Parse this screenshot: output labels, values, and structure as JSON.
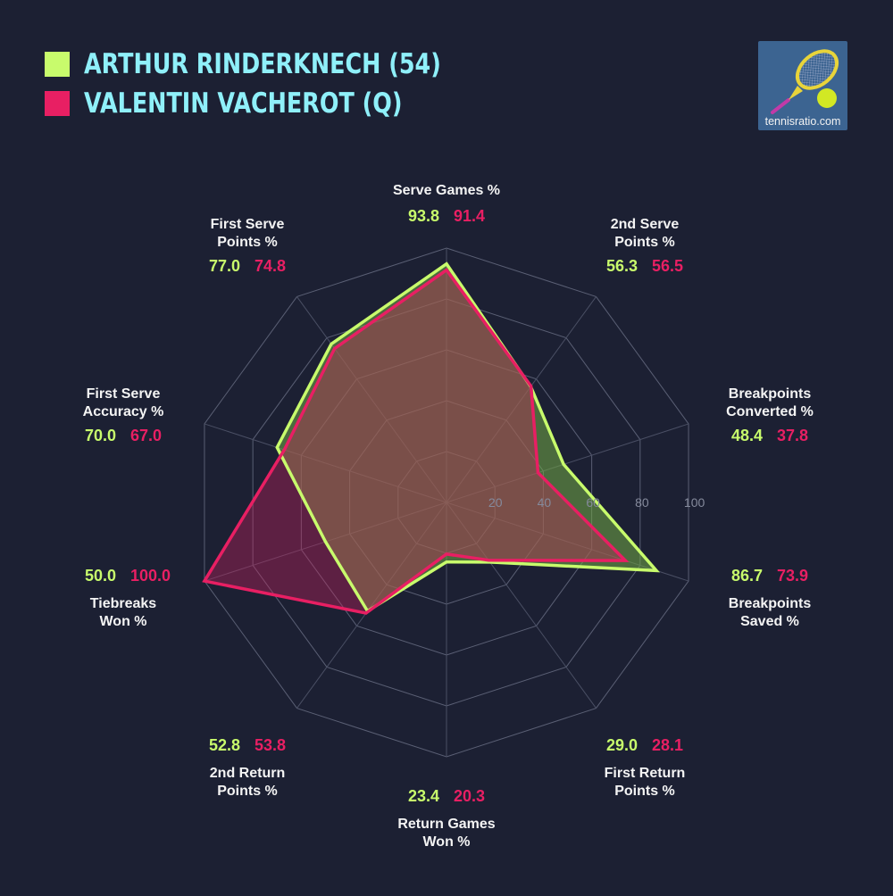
{
  "legend": [
    {
      "name": "ARTHUR RINDERKNECH (54)",
      "color": "#c8fb6c"
    },
    {
      "name": "VALENTIN VACHEROT (Q)",
      "color": "#e81f63"
    }
  ],
  "logo": {
    "text": "tennisratio.com",
    "icon": "tennis-racket-ball-icon"
  },
  "chart_data": {
    "type": "radar",
    "title": "",
    "range": [
      0,
      100
    ],
    "ticks": [
      20,
      40,
      60,
      80,
      100
    ],
    "tick_labels": [
      "20",
      "40",
      "60",
      "80",
      "100"
    ],
    "grid": true,
    "legend_position": "top-left",
    "axes": [
      {
        "label": [
          "Serve Games %"
        ]
      },
      {
        "label": [
          "2nd Serve",
          "Points %"
        ]
      },
      {
        "label": [
          "Breakpoints",
          "Converted %"
        ]
      },
      {
        "label": [
          "Breakpoints",
          "Saved %"
        ]
      },
      {
        "label": [
          "First Return",
          "Points %"
        ]
      },
      {
        "label": [
          "Return Games",
          "Won %"
        ]
      },
      {
        "label": [
          "2nd Return",
          "Points %"
        ]
      },
      {
        "label": [
          "Tiebreaks",
          "Won %"
        ]
      },
      {
        "label": [
          "First Serve",
          "Accuracy %"
        ]
      },
      {
        "label": [
          "First Serve",
          "Points %"
        ]
      }
    ],
    "series": [
      {
        "name": "ARTHUR RINDERKNECH (54)",
        "color": "#c8fb6c",
        "values": [
          93.8,
          56.3,
          48.4,
          86.7,
          29.0,
          23.4,
          52.8,
          50.0,
          70.0,
          77.0
        ],
        "labels": [
          "93.8",
          "56.3",
          "48.4",
          "86.7",
          "29.0",
          "23.4",
          "52.8",
          "50.0",
          "70.0",
          "77.0"
        ]
      },
      {
        "name": "VALENTIN VACHEROT (Q)",
        "color": "#e81f63",
        "values": [
          91.4,
          56.5,
          37.8,
          73.9,
          28.1,
          20.3,
          53.8,
          100.0,
          67.0,
          74.8
        ],
        "labels": [
          "91.4",
          "56.5",
          "37.8",
          "73.9",
          "28.1",
          "20.3",
          "53.8",
          "100.0",
          "67.0",
          "74.8"
        ]
      }
    ]
  }
}
